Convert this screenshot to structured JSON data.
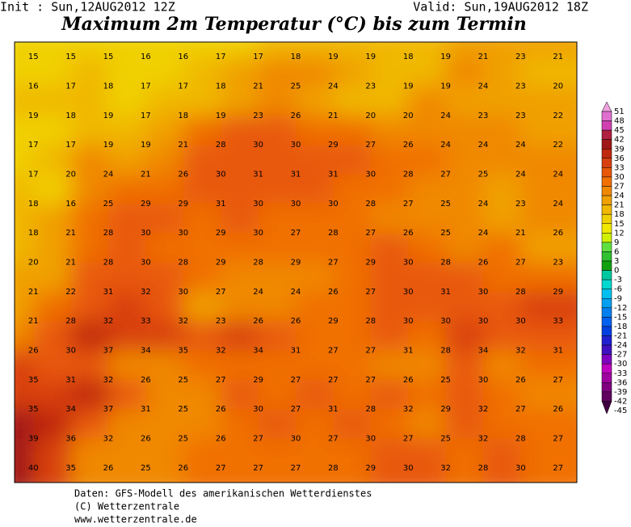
{
  "header": {
    "init": "Init : Sun,12AUG2012 12Z",
    "valid": "Valid: Sun,19AUG2012 18Z",
    "title": "Maximum 2m Temperatur (°C) bis zum Termin"
  },
  "map": {
    "rows": [
      [
        15,
        15,
        15,
        16,
        16,
        17,
        17,
        18,
        19,
        19,
        18,
        19,
        21,
        23,
        21
      ],
      [
        16,
        17,
        18,
        17,
        17,
        18,
        21,
        25,
        24,
        23,
        19,
        19,
        24,
        23,
        20
      ],
      [
        19,
        18,
        19,
        17,
        18,
        19,
        23,
        26,
        21,
        20,
        20,
        24,
        23,
        23,
        22
      ],
      [
        17,
        17,
        19,
        19,
        21,
        28,
        30,
        30,
        29,
        27,
        26,
        24,
        24,
        24,
        22
      ],
      [
        17,
        20,
        24,
        21,
        26,
        30,
        31,
        31,
        31,
        30,
        28,
        27,
        25,
        24,
        24
      ],
      [
        18,
        16,
        25,
        29,
        29,
        31,
        30,
        30,
        30,
        28,
        27,
        25,
        24,
        23,
        24
      ],
      [
        18,
        21,
        28,
        30,
        30,
        29,
        30,
        27,
        28,
        27,
        26,
        25,
        24,
        21,
        26
      ],
      [
        20,
        21,
        28,
        30,
        28,
        29,
        28,
        29,
        27,
        29,
        30,
        28,
        26,
        27,
        23
      ],
      [
        21,
        22,
        31,
        32,
        30,
        27,
        24,
        24,
        26,
        27,
        30,
        31,
        30,
        28,
        29
      ],
      [
        21,
        28,
        32,
        33,
        32,
        23,
        26,
        26,
        29,
        28,
        30,
        30,
        30,
        30,
        33
      ],
      [
        26,
        30,
        37,
        34,
        35,
        32,
        34,
        31,
        27,
        27,
        31,
        28,
        34,
        32,
        31
      ],
      [
        35,
        31,
        32,
        26,
        25,
        27,
        29,
        27,
        27,
        27,
        26,
        25,
        30,
        26,
        27
      ],
      [
        35,
        34,
        37,
        31,
        25,
        26,
        30,
        27,
        31,
        28,
        32,
        29,
        32,
        27,
        26
      ],
      [
        39,
        36,
        32,
        26,
        25,
        26,
        27,
        30,
        27,
        30,
        27,
        25,
        32,
        28,
        27
      ],
      [
        40,
        35,
        26,
        25,
        26,
        27,
        27,
        27,
        28,
        29,
        30,
        32,
        28,
        30,
        27
      ]
    ]
  },
  "colorbar": {
    "labels": [
      51,
      48,
      45,
      42,
      39,
      36,
      33,
      30,
      27,
      24,
      21,
      18,
      15,
      12,
      9,
      6,
      3,
      0,
      -3,
      -6,
      -9,
      -12,
      -15,
      -18,
      -21,
      -24,
      -27,
      -30,
      -33,
      -36,
      -39,
      -42,
      -45
    ],
    "colors": [
      "#f0a0e0",
      "#e070d0",
      "#d040b0",
      "#b02040",
      "#a01818",
      "#c02810",
      "#d84010",
      "#e85808",
      "#f07000",
      "#f08800",
      "#f0a000",
      "#f0b800",
      "#f0d000",
      "#f0e800",
      "#d0f000",
      "#60e040",
      "#30c030",
      "#10a010",
      "#00c8a0",
      "#00d8d0",
      "#00c0f0",
      "#00a0f0",
      "#0080f0",
      "#0060f0",
      "#0040e0",
      "#2020d0",
      "#4010c0",
      "#8000c0",
      "#c000c0",
      "#a000a0",
      "#800080",
      "#600060",
      "#400040"
    ]
  },
  "footer": [
    "Daten: GFS-Modell des amerikanischen Wetterdienstes",
    "(C) Wetterzentrale",
    "www.wetterzentrale.de"
  ]
}
